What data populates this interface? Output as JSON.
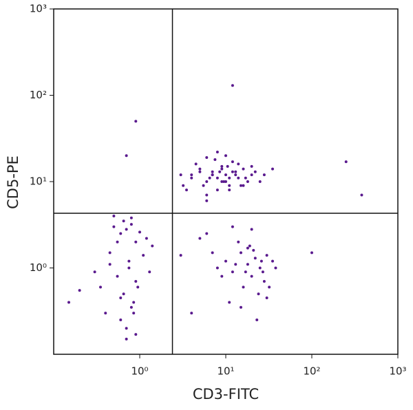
{
  "chart_data": {
    "type": "scatter",
    "xlabel": "CD3-FITC",
    "ylabel": "CD5-PE",
    "log_scale": true,
    "color": "#5a1a8e",
    "xlim": [
      0.1,
      1000
    ],
    "ylim": [
      0.1,
      1000
    ],
    "xticks": [
      {
        "value": 1,
        "label": "10⁰"
      },
      {
        "value": 10,
        "label": "10¹"
      },
      {
        "value": 100,
        "label": "10²"
      },
      {
        "value": 1000,
        "label": "10³"
      }
    ],
    "yticks": [
      {
        "value": 1,
        "label": "10⁰"
      },
      {
        "value": 10,
        "label": "10¹"
      },
      {
        "value": 100,
        "label": "10²"
      },
      {
        "value": 1000,
        "label": "10³"
      }
    ],
    "quadrant_x": 2.4,
    "quadrant_y": 4.3,
    "x": [
      4,
      5,
      6,
      7,
      8,
      9,
      10,
      11,
      12,
      14,
      16,
      18,
      20,
      3.5,
      4.5,
      5.5,
      6.5,
      7.5,
      8.5,
      9.5,
      10.5,
      13,
      15,
      17,
      22,
      25,
      3,
      6,
      8,
      10,
      12,
      7,
      9,
      11,
      5,
      14,
      16,
      6,
      8,
      10,
      4,
      20,
      28,
      35,
      3.2,
      7,
      9,
      13,
      11,
      6,
      8,
      10,
      12,
      15,
      18,
      20,
      22,
      25,
      28,
      30,
      35,
      14,
      16,
      19,
      24,
      6,
      7,
      9,
      11,
      13,
      17,
      21,
      26,
      32,
      38,
      5,
      4,
      3,
      15,
      20,
      23,
      27,
      12,
      18,
      30,
      0.5,
      0.6,
      0.7,
      0.8,
      0.9,
      1,
      0.55,
      0.65,
      0.75,
      0.85,
      0.45,
      0.4,
      0.35,
      0.3,
      1.2,
      1.4,
      0.6,
      0.7,
      0.8,
      0.9,
      0.5,
      0.65,
      0.75,
      1.1,
      0.85,
      0.95,
      0.2,
      0.15,
      0.7,
      0.6,
      0.8,
      1.3,
      0.55,
      0.45,
      0.9,
      0.9,
      12,
      250,
      380,
      100,
      0.7
    ],
    "values": [
      12,
      14,
      10,
      13,
      11,
      15,
      12,
      9,
      13,
      11,
      14,
      10,
      12,
      8,
      16,
      9,
      11,
      18,
      13,
      10,
      15,
      12,
      9,
      11,
      13,
      10,
      12,
      7,
      8,
      20,
      17,
      12,
      14,
      11,
      13,
      16,
      9,
      6,
      22,
      10,
      11,
      15,
      12,
      14,
      9,
      12,
      10,
      13,
      8,
      19,
      1,
      1.2,
      0.9,
      1.5,
      1.1,
      0.8,
      1.3,
      1,
      0.7,
      1.4,
      1.2,
      2,
      0.6,
      1.8,
      0.5,
      2.5,
      1.5,
      0.8,
      0.4,
      1.1,
      0.9,
      1.6,
      1.2,
      0.6,
      1,
      2.2,
      0.3,
      1.4,
      0.35,
      2.8,
      0.25,
      0.9,
      3,
      1.7,
      0.45,
      3,
      2.5,
      2.8,
      3.2,
      2,
      2.6,
      0.8,
      0.5,
      1.2,
      0.4,
      1.5,
      0.3,
      0.6,
      0.9,
      2.2,
      1.8,
      0.25,
      0.2,
      0.35,
      0.7,
      4,
      3.5,
      1,
      1.4,
      0.3,
      0.6,
      0.55,
      0.4,
      0.15,
      0.45,
      3.8,
      0.9,
      2,
      1.1,
      0.17,
      50,
      130,
      17,
      7,
      1.5,
      20
    ]
  }
}
